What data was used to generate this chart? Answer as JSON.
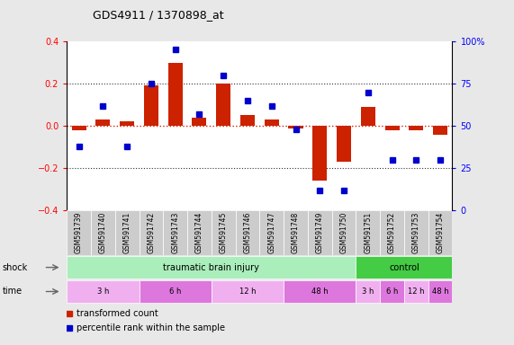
{
  "title": "GDS4911 / 1370898_at",
  "samples": [
    "GSM591739",
    "GSM591740",
    "GSM591741",
    "GSM591742",
    "GSM591743",
    "GSM591744",
    "GSM591745",
    "GSM591746",
    "GSM591747",
    "GSM591748",
    "GSM591749",
    "GSM591750",
    "GSM591751",
    "GSM591752",
    "GSM591753",
    "GSM591754"
  ],
  "transformed_count": [
    -0.02,
    0.03,
    0.02,
    0.19,
    0.3,
    0.04,
    0.2,
    0.05,
    0.03,
    -0.01,
    -0.26,
    -0.17,
    0.09,
    -0.02,
    -0.02,
    -0.04
  ],
  "percentile_rank": [
    38,
    62,
    38,
    75,
    95,
    57,
    80,
    65,
    62,
    48,
    12,
    12,
    70,
    30,
    30,
    30
  ],
  "ylim_left": [
    -0.4,
    0.4
  ],
  "ylim_right": [
    0,
    100
  ],
  "yticks_left": [
    -0.4,
    -0.2,
    0.0,
    0.2,
    0.4
  ],
  "yticks_right": [
    0,
    25,
    50,
    75,
    100
  ],
  "ytick_labels_right": [
    "0",
    "25",
    "50",
    "75",
    "100%"
  ],
  "bar_color": "#cc2200",
  "dot_color": "#0000cc",
  "bg_color": "#e8e8e8",
  "plot_bg": "#ffffff",
  "shock_label": "shock",
  "time_label": "time",
  "shock_groups": [
    {
      "label": "traumatic brain injury",
      "start": 0,
      "end": 12,
      "color": "#aaeebb"
    },
    {
      "label": "control",
      "start": 12,
      "end": 16,
      "color": "#44cc44"
    }
  ],
  "time_groups": [
    {
      "label": "3 h",
      "start": 0,
      "end": 4,
      "color": "#f0b0f0"
    },
    {
      "label": "6 h",
      "start": 4,
      "end": 8,
      "color": "#dd77dd"
    },
    {
      "label": "12 h",
      "start": 8,
      "end": 12,
      "color": "#f0b0f0"
    },
    {
      "label": "48 h",
      "start": 12,
      "end": 16,
      "color": "#dd77dd"
    },
    {
      "label": "3 h",
      "start": 12,
      "end": 13,
      "color": "#f0b0f0"
    },
    {
      "label": "6 h",
      "start": 13,
      "end": 14,
      "color": "#dd77dd"
    },
    {
      "label": "12 h",
      "start": 14,
      "end": 15,
      "color": "#f0b0f0"
    },
    {
      "label": "48 h",
      "start": 15,
      "end": 16,
      "color": "#dd77dd"
    }
  ],
  "legend_bar_label": "transformed count",
  "legend_dot_label": "percentile rank within the sample",
  "dotted_line_color": "#333333",
  "zero_line_color": "#cc2200",
  "label_bg": "#cccccc"
}
